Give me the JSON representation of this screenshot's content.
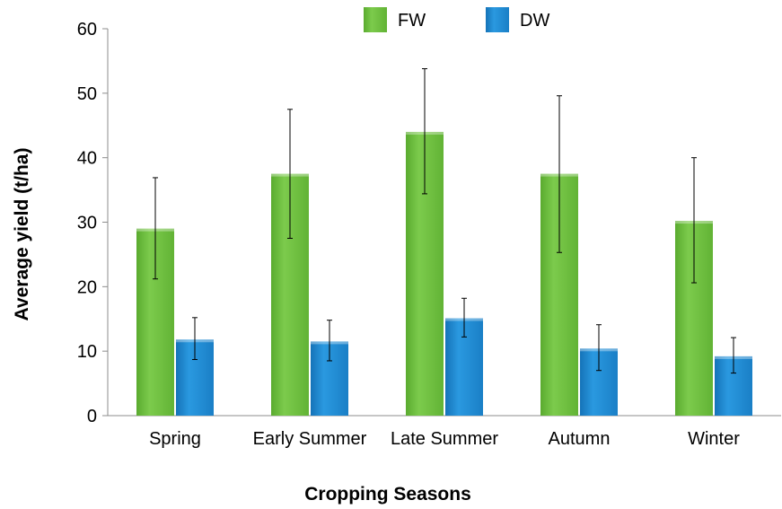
{
  "chart_data": {
    "type": "bar",
    "title": "",
    "xlabel": "Cropping Seasons",
    "ylabel": "Average yield (t/ha)",
    "ylim": [
      0,
      60
    ],
    "yticks": [
      0,
      10,
      20,
      30,
      40,
      50,
      60
    ],
    "categories": [
      "Spring",
      "Early Summer",
      "Late Summer",
      "Autumn",
      "Winter"
    ],
    "series": [
      {
        "name": "FW",
        "color": "#6dbf3f",
        "values": [
          29,
          37.5,
          44,
          37.5,
          30.2
        ],
        "error_low": [
          21.2,
          27.5,
          34.4,
          25.3,
          20.6
        ],
        "error_high": [
          36.9,
          47.5,
          53.8,
          49.6,
          40
        ]
      },
      {
        "name": "DW",
        "color": "#1b88d3",
        "values": [
          11.8,
          11.5,
          15.1,
          10.4,
          9.2
        ],
        "error_low": [
          8.7,
          8.5,
          12.2,
          7,
          6.6
        ],
        "error_high": [
          15.2,
          14.8,
          18.2,
          14.1,
          12.1
        ]
      }
    ],
    "legend_position": "top-center",
    "grid": false
  }
}
